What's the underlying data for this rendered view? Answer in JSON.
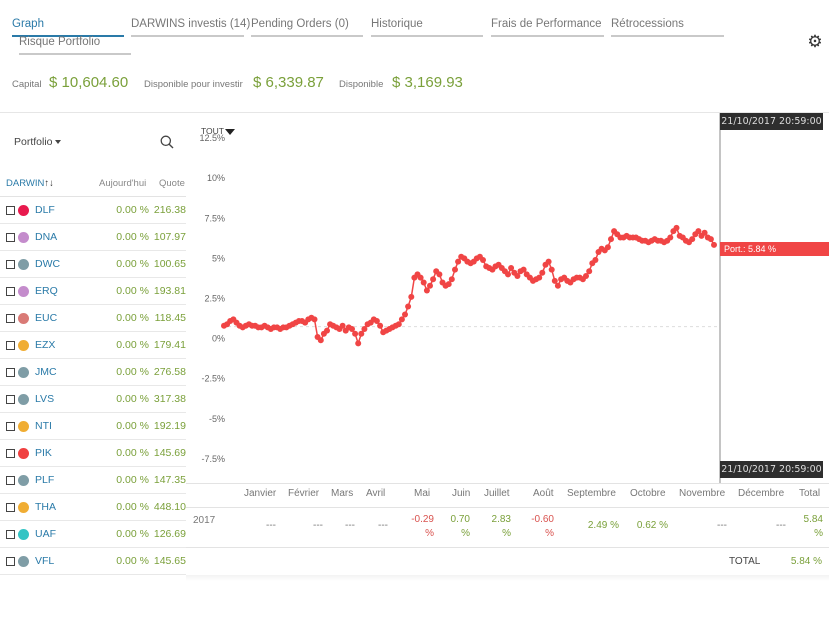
{
  "tabs": [
    {
      "label": "Graph",
      "active": true
    },
    {
      "label": "DARWINS investis (14)"
    },
    {
      "label": "Pending Orders (0)"
    },
    {
      "label": "Historique"
    },
    {
      "label": "Frais de Performance"
    },
    {
      "label": "Rétrocessions"
    },
    {
      "label": "Risque Portfolio"
    }
  ],
  "settings_icon": "gear-icon",
  "capital": {
    "capital_label": "Capital",
    "capital_value": "$ 10,604.60",
    "invest_label": "Disponible pour investir",
    "invest_value": "$ 6,339.87",
    "dispo_label": "Disponible",
    "dispo_value": "$ 3,169.93"
  },
  "portfolio": {
    "select_label": "Portfolio",
    "search_icon": "search-icon",
    "header": {
      "darwin": "DARWIN",
      "sort_icon": "↑↓",
      "today": "Aujourd'hui",
      "quote": "Quote"
    },
    "rows": [
      {
        "name": "DLF",
        "pct": "0.00 %",
        "quote": "216.38",
        "color": "#e8194d"
      },
      {
        "name": "DNA",
        "pct": "0.00 %",
        "quote": "107.97",
        "color": "#c48ccc"
      },
      {
        "name": "DWC",
        "pct": "0.00 %",
        "quote": "100.65",
        "color": "#7f9da6"
      },
      {
        "name": "ERQ",
        "pct": "0.00 %",
        "quote": "193.81",
        "color": "#c48ccc"
      },
      {
        "name": "EUC",
        "pct": "0.00 %",
        "quote": "118.45",
        "color": "#d97a76"
      },
      {
        "name": "EZX",
        "pct": "0.00 %",
        "quote": "179.41",
        "color": "#f0ad33"
      },
      {
        "name": "JMC",
        "pct": "0.00 %",
        "quote": "276.58",
        "color": "#7f9da6"
      },
      {
        "name": "LVS",
        "pct": "0.00 %",
        "quote": "317.38",
        "color": "#7f9da6"
      },
      {
        "name": "NTI",
        "pct": "0.00 %",
        "quote": "192.19",
        "color": "#f0ad33"
      },
      {
        "name": "PIK",
        "pct": "0.00 %",
        "quote": "145.69",
        "color": "#f04040"
      },
      {
        "name": "PLF",
        "pct": "0.00 %",
        "quote": "147.35",
        "color": "#7f9da6"
      },
      {
        "name": "THA",
        "pct": "0.00 %",
        "quote": "448.10",
        "color": "#f0ad33"
      },
      {
        "name": "UAF",
        "pct": "0.00 %",
        "quote": "126.69",
        "color": "#33c4c4"
      },
      {
        "name": "VFL",
        "pct": "0.00 %",
        "quote": "145.65",
        "color": "#7f9da6"
      }
    ]
  },
  "chart": {
    "range_label": "TOUT",
    "timestamp": "21/10/2017 20:59:00",
    "port_label": "Port.: 5.84 %",
    "line_color": "#f04545",
    "y_ticks": [
      "12.5%",
      "10%",
      "7.5%",
      "5%",
      "2.5%",
      "0%",
      "-2.5%",
      "-5%",
      "-7.5%"
    ]
  },
  "chart_data": {
    "type": "line",
    "ylabel": "",
    "ylim": [
      -8.75,
      13.75
    ],
    "series": [
      {
        "values": [
          0.8,
          0.9,
          1.1,
          1.2,
          1.0,
          0.8,
          0.7,
          0.8,
          0.9,
          0.8,
          0.8,
          0.7,
          0.7,
          0.8,
          0.7,
          0.6,
          0.7,
          0.7,
          0.6,
          0.7,
          0.7,
          0.8,
          0.9,
          1.0,
          1.1,
          1.1,
          1.0,
          1.2,
          1.3,
          1.2,
          0.1,
          -0.1,
          0.3,
          0.5,
          0.9,
          0.8,
          0.7,
          0.6,
          0.8,
          0.5,
          0.7,
          0.6,
          0.3,
          -0.3,
          0.3,
          0.6,
          0.9,
          1.0,
          1.2,
          1.1,
          0.8,
          0.4,
          0.5,
          0.6,
          0.7,
          0.8,
          0.9,
          1.2,
          1.5,
          2.0,
          2.6,
          3.8,
          4.0,
          3.8,
          3.5,
          3.0,
          3.3,
          3.7,
          4.2,
          4.0,
          3.5,
          3.3,
          3.4,
          3.7,
          4.3,
          4.8,
          5.1,
          5.0,
          4.8,
          4.7,
          4.8,
          5.0,
          5.1,
          4.9,
          4.5,
          4.4,
          4.3,
          4.5,
          4.6,
          4.4,
          4.2,
          4.0,
          4.4,
          4.1,
          3.9,
          4.2,
          4.3,
          4.0,
          3.8,
          3.6,
          3.7,
          3.8,
          4.1,
          4.6,
          4.8,
          4.3,
          3.6,
          3.3,
          3.7,
          3.8,
          3.6,
          3.5,
          3.7,
          3.8,
          3.8,
          3.7,
          3.9,
          4.2,
          4.7,
          4.9,
          5.4,
          5.6,
          5.5,
          5.7,
          6.2,
          6.7,
          6.5,
          6.3,
          6.3,
          6.4,
          6.3,
          6.3,
          6.3,
          6.2,
          6.1,
          6.1,
          6.0,
          6.1,
          6.2,
          6.1,
          6.1,
          6.0,
          6.1,
          6.3,
          6.7,
          6.9,
          6.4,
          6.3,
          6.1,
          6.0,
          6.2,
          6.5,
          6.7,
          6.4,
          6.6,
          6.3,
          6.2,
          5.84
        ]
      }
    ]
  },
  "monthly": {
    "headers": [
      "Janvier",
      "Février",
      "Mars",
      "Avril",
      "Mai",
      "Juin",
      "Juillet",
      "Août",
      "Septembre",
      "Octobre",
      "Novembre",
      "Décembre",
      "Total"
    ],
    "year": "2017",
    "values": [
      {
        "a": "---",
        "b": ""
      },
      {
        "a": "---",
        "b": ""
      },
      {
        "a": "---",
        "b": ""
      },
      {
        "a": "---",
        "b": ""
      },
      {
        "a": "-0.29",
        "b": "%"
      },
      {
        "a": "0.70",
        "b": "%"
      },
      {
        "a": "2.83",
        "b": "%"
      },
      {
        "a": "-0.60",
        "b": "%"
      },
      {
        "a": "2.49 %",
        "b": ""
      },
      {
        "a": "0.62 %",
        "b": ""
      },
      {
        "a": "---",
        "b": ""
      },
      {
        "a": "---",
        "b": ""
      },
      {
        "a": "5.84",
        "b": "%"
      }
    ],
    "total_label": "TOTAL",
    "total_value": "5.84 %"
  }
}
